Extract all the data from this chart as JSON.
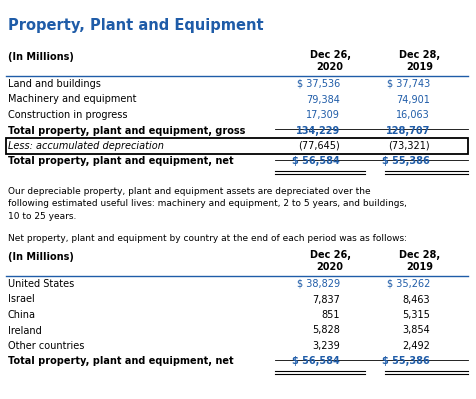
{
  "title": "Property, Plant and Equipment",
  "title_color": "#1F5CA8",
  "background_color": "#ffffff",
  "blue": "#1F5CA8",
  "black": "#000000",
  "table1": {
    "subheader": "(In Millions)",
    "col_headers": [
      "Dec 26,\n2020",
      "Dec 28,\n2019"
    ],
    "rows": [
      {
        "label": "Land and buildings",
        "v2020": "$ 37,536",
        "v2019": "$ 37,743",
        "bold": false,
        "italic": false,
        "blue_vals": true
      },
      {
        "label": "Machinery and equipment",
        "v2020": "79,384",
        "v2019": "74,901",
        "bold": false,
        "italic": false,
        "blue_vals": true
      },
      {
        "label": "Construction in progress",
        "v2020": "17,309",
        "v2019": "16,063",
        "bold": false,
        "italic": false,
        "blue_vals": true
      },
      {
        "label": "Total property, plant and equipment, gross",
        "v2020": "134,229",
        "v2019": "128,707",
        "bold": true,
        "italic": false,
        "blue_vals": true
      },
      {
        "label": "Less: accumulated depreciation",
        "v2020": "(77,645)",
        "v2019": "(73,321)",
        "bold": false,
        "italic": true,
        "blue_vals": false,
        "box": true
      },
      {
        "label": "Total property, plant and equipment, net",
        "v2020": "$ 56,584",
        "v2019": "$ 55,386",
        "bold": true,
        "italic": false,
        "blue_vals": true,
        "double_ul": true
      }
    ],
    "single_ul_before": [
      3,
      5
    ]
  },
  "note": "Our depreciable property, plant and equipment assets are depreciated over the\nfollowing estimated useful lives: machinery and equipment, 2 to 5 years, and buildings,\n10 to 25 years.",
  "note2": "Net property, plant and equipment by country at the end of each period was as follows:",
  "table2": {
    "subheader": "(In Millions)",
    "col_headers": [
      "Dec 26,\n2020",
      "Dec 28,\n2019"
    ],
    "rows": [
      {
        "label": "United States",
        "v2020": "$ 38,829",
        "v2019": "$ 35,262",
        "bold": false,
        "blue_vals": true
      },
      {
        "label": "Israel",
        "v2020": "7,837",
        "v2019": "8,463",
        "bold": false,
        "blue_vals": false
      },
      {
        "label": "China",
        "v2020": "851",
        "v2019": "5,315",
        "bold": false,
        "blue_vals": false
      },
      {
        "label": "Ireland",
        "v2020": "5,828",
        "v2019": "3,854",
        "bold": false,
        "blue_vals": false
      },
      {
        "label": "Other countries",
        "v2020": "3,239",
        "v2019": "2,492",
        "bold": false,
        "blue_vals": false
      },
      {
        "label": "Total property, plant and equipment, net",
        "v2020": "$ 56,584",
        "v2019": "$ 55,386",
        "bold": true,
        "blue_vals": true,
        "double_ul": true
      }
    ],
    "single_ul_before": [
      5
    ]
  }
}
